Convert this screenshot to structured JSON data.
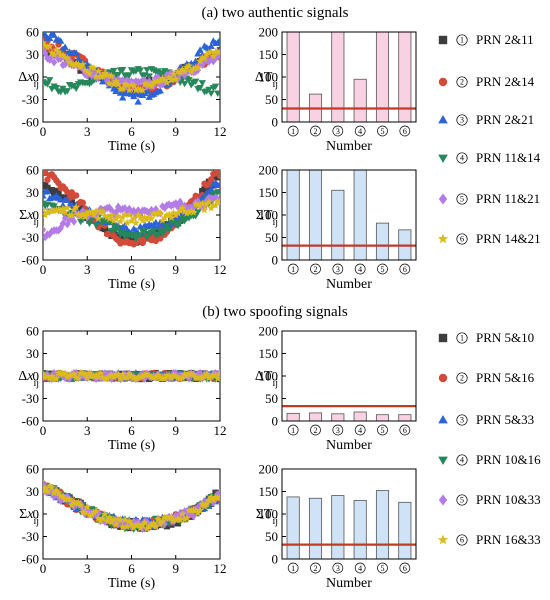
{
  "section_titles": [
    "(a) two authentic signals",
    "(b) two spoofing signals"
  ],
  "colors": {
    "series": [
      "#3d3d3d",
      "#d24a3a",
      "#2c63d6",
      "#26875a",
      "#b37be8",
      "#dcbb1d"
    ],
    "bar_pink": "#f8d2e3",
    "bar_blue": "#cfe2f6",
    "bar_edge": "#555555",
    "threshold": "#c0392b"
  },
  "markers": [
    "square",
    "circle",
    "triangle-up",
    "triangle-down",
    "diamond",
    "star"
  ],
  "circled_numbers": [
    "①",
    "②",
    "③",
    "④",
    "⑤",
    "⑥"
  ],
  "legends": [
    [
      "PRN 2&11",
      "PRN 2&14",
      "PRN 2&21",
      "PRN 11&14",
      "PRN 11&21",
      "PRN 14&21"
    ],
    [
      "PRN 5&10",
      "PRN 5&16",
      "PRN 5&33",
      "PRN 10&16",
      "PRN 10&33",
      "PRN 16&33"
    ]
  ],
  "chart_data": [
    {
      "type": "scatter",
      "ylabel": "Δx_ij",
      "xlabel": "Time (s)",
      "xlim": [
        0,
        12
      ],
      "ylim": [
        -60,
        60
      ],
      "xticks": [
        0,
        3,
        6,
        9,
        12
      ],
      "yticks": [
        60,
        30,
        0,
        -30,
        -60
      ],
      "series": [
        {
          "name": "PRN 2&11",
          "x": [
            0,
            2,
            4,
            6,
            8,
            10,
            12
          ],
          "y": [
            38,
            20,
            -2,
            -12,
            -4,
            12,
            32
          ]
        },
        {
          "name": "PRN 2&14",
          "x": [
            0,
            2,
            4,
            6,
            8,
            10,
            12
          ],
          "y": [
            45,
            28,
            5,
            -18,
            -10,
            10,
            28
          ]
        },
        {
          "name": "PRN 2&21",
          "x": [
            0,
            2,
            4,
            6,
            8,
            10,
            12
          ],
          "y": [
            58,
            30,
            0,
            -28,
            -12,
            18,
            52
          ]
        },
        {
          "name": "PRN 11&14",
          "x": [
            0,
            2,
            4,
            6,
            8,
            10,
            12
          ],
          "y": [
            -8,
            -15,
            0,
            5,
            5,
            -8,
            -18
          ]
        },
        {
          "name": "PRN 11&21",
          "x": [
            0,
            2,
            4,
            6,
            8,
            10,
            12
          ],
          "y": [
            30,
            15,
            0,
            -10,
            -5,
            10,
            25
          ]
        },
        {
          "name": "PRN 14&21",
          "x": [
            0,
            2,
            4,
            6,
            8,
            10,
            12
          ],
          "y": [
            40,
            22,
            2,
            -15,
            -8,
            12,
            35
          ]
        }
      ]
    },
    {
      "type": "bar",
      "ylabel": "ΔT_ij",
      "xlabel": "Number",
      "categories": [
        "①",
        "②",
        "③",
        "④",
        "⑤",
        "⑥"
      ],
      "values": [
        200,
        62,
        200,
        95,
        200,
        200
      ],
      "threshold": 30,
      "ylim": [
        0,
        200
      ],
      "yticks": [
        200,
        150,
        100,
        50,
        0
      ]
    },
    {
      "type": "scatter",
      "ylabel": "Σx_ij",
      "xlabel": "Time (s)",
      "xlim": [
        0,
        12
      ],
      "ylim": [
        -60,
        60
      ],
      "xticks": [
        0,
        3,
        6,
        9,
        12
      ],
      "yticks": [
        60,
        30,
        0,
        -30,
        -60
      ],
      "series": [
        {
          "name": "PRN 2&11",
          "x": [
            0,
            2,
            4,
            6,
            8,
            10,
            12
          ],
          "y": [
            38,
            15,
            -15,
            -32,
            -22,
            10,
            52
          ]
        },
        {
          "name": "PRN 2&14",
          "x": [
            0,
            2,
            4,
            6,
            8,
            10,
            12
          ],
          "y": [
            55,
            25,
            -15,
            -38,
            -25,
            12,
            58
          ]
        },
        {
          "name": "PRN 2&21",
          "x": [
            0,
            2,
            4,
            6,
            8,
            10,
            12
          ],
          "y": [
            30,
            10,
            -5,
            -20,
            -12,
            8,
            42
          ]
        },
        {
          "name": "PRN 11&14",
          "x": [
            0,
            2,
            4,
            6,
            8,
            10,
            12
          ],
          "y": [
            10,
            0,
            -10,
            -25,
            -20,
            0,
            30
          ]
        },
        {
          "name": "PRN 11&21",
          "x": [
            0,
            2,
            4,
            6,
            8,
            10,
            12
          ],
          "y": [
            -25,
            -5,
            5,
            5,
            8,
            15,
            18
          ]
        },
        {
          "name": "PRN 14&21",
          "x": [
            0,
            2,
            4,
            6,
            8,
            10,
            12
          ],
          "y": [
            5,
            5,
            0,
            -5,
            -2,
            8,
            15
          ]
        }
      ]
    },
    {
      "type": "bar",
      "ylabel": "ΣT_ij",
      "xlabel": "Number",
      "categories": [
        "①",
        "②",
        "③",
        "④",
        "⑤",
        "⑥"
      ],
      "values": [
        200,
        200,
        155,
        200,
        82,
        67
      ],
      "threshold": 32,
      "ylim": [
        0,
        200
      ],
      "yticks": [
        200,
        150,
        100,
        50,
        0
      ]
    },
    {
      "type": "scatter",
      "ylabel": "Δx_ij",
      "xlabel": "Time (s)",
      "xlim": [
        0,
        12
      ],
      "ylim": [
        -60,
        60
      ],
      "xticks": [
        0,
        3,
        6,
        9,
        12
      ],
      "yticks": [
        60,
        30,
        0,
        -30,
        -60
      ],
      "series": [
        {
          "name": "PRN 5&10",
          "x": [
            0,
            2,
            4,
            6,
            8,
            10,
            12
          ],
          "y": [
            0,
            0,
            0,
            0,
            0,
            0,
            0
          ]
        },
        {
          "name": "PRN 5&16",
          "x": [
            0,
            2,
            4,
            6,
            8,
            10,
            12
          ],
          "y": [
            0,
            0,
            0,
            0,
            0,
            0,
            0
          ]
        },
        {
          "name": "PRN 5&33",
          "x": [
            0,
            2,
            4,
            6,
            8,
            10,
            12
          ],
          "y": [
            0,
            0,
            0,
            0,
            0,
            0,
            0
          ]
        },
        {
          "name": "PRN 10&16",
          "x": [
            0,
            2,
            4,
            6,
            8,
            10,
            12
          ],
          "y": [
            0,
            0,
            0,
            0,
            0,
            0,
            0
          ]
        },
        {
          "name": "PRN 10&33",
          "x": [
            0,
            2,
            4,
            6,
            8,
            10,
            12
          ],
          "y": [
            0,
            0,
            0,
            0,
            0,
            0,
            0
          ]
        },
        {
          "name": "PRN 16&33",
          "x": [
            0,
            2,
            4,
            6,
            8,
            10,
            12
          ],
          "y": [
            0,
            0,
            0,
            0,
            0,
            0,
            0
          ]
        }
      ]
    },
    {
      "type": "bar",
      "ylabel": "ΔT_ij",
      "xlabel": "Number",
      "categories": [
        "①",
        "②",
        "③",
        "④",
        "⑤",
        "⑥"
      ],
      "values": [
        17,
        18,
        16,
        20,
        14,
        14
      ],
      "threshold": 33,
      "ylim": [
        0,
        200
      ],
      "yticks": [
        200,
        150,
        100,
        50,
        0
      ]
    },
    {
      "type": "scatter",
      "ylabel": "Σx_ij",
      "xlabel": "Time (s)",
      "xlim": [
        0,
        12
      ],
      "ylim": [
        -60,
        60
      ],
      "xticks": [
        0,
        3,
        6,
        9,
        12
      ],
      "yticks": [
        60,
        30,
        0,
        -30,
        -60
      ],
      "series": [
        {
          "name": "PRN 5&10",
          "x": [
            0,
            2,
            4,
            6,
            8,
            10,
            12
          ],
          "y": [
            36,
            15,
            -5,
            -15,
            -12,
            0,
            25
          ]
        },
        {
          "name": "PRN 5&16",
          "x": [
            0,
            2,
            4,
            6,
            8,
            10,
            12
          ],
          "y": [
            35,
            14,
            -4,
            -14,
            -11,
            1,
            24
          ]
        },
        {
          "name": "PRN 5&33",
          "x": [
            0,
            2,
            4,
            6,
            8,
            10,
            12
          ],
          "y": [
            34,
            13,
            -3,
            -13,
            -10,
            2,
            23
          ]
        },
        {
          "name": "PRN 10&16",
          "x": [
            0,
            2,
            4,
            6,
            8,
            10,
            12
          ],
          "y": [
            35,
            15,
            -5,
            -15,
            -10,
            0,
            24
          ]
        },
        {
          "name": "PRN 10&33",
          "x": [
            0,
            2,
            4,
            6,
            8,
            10,
            12
          ],
          "y": [
            36,
            14,
            -4,
            -14,
            -11,
            1,
            25
          ]
        },
        {
          "name": "PRN 16&33",
          "x": [
            0,
            2,
            4,
            6,
            8,
            10,
            12
          ],
          "y": [
            35,
            14,
            -4,
            -14,
            -11,
            1,
            24
          ]
        }
      ]
    },
    {
      "type": "bar",
      "ylabel": "ΣT_ij",
      "xlabel": "Number",
      "categories": [
        "①",
        "②",
        "③",
        "④",
        "⑤",
        "⑥"
      ],
      "values": [
        138,
        135,
        141,
        130,
        152,
        126
      ],
      "threshold": 32,
      "ylim": [
        0,
        200
      ],
      "yticks": [
        200,
        150,
        100,
        50,
        0
      ]
    }
  ]
}
